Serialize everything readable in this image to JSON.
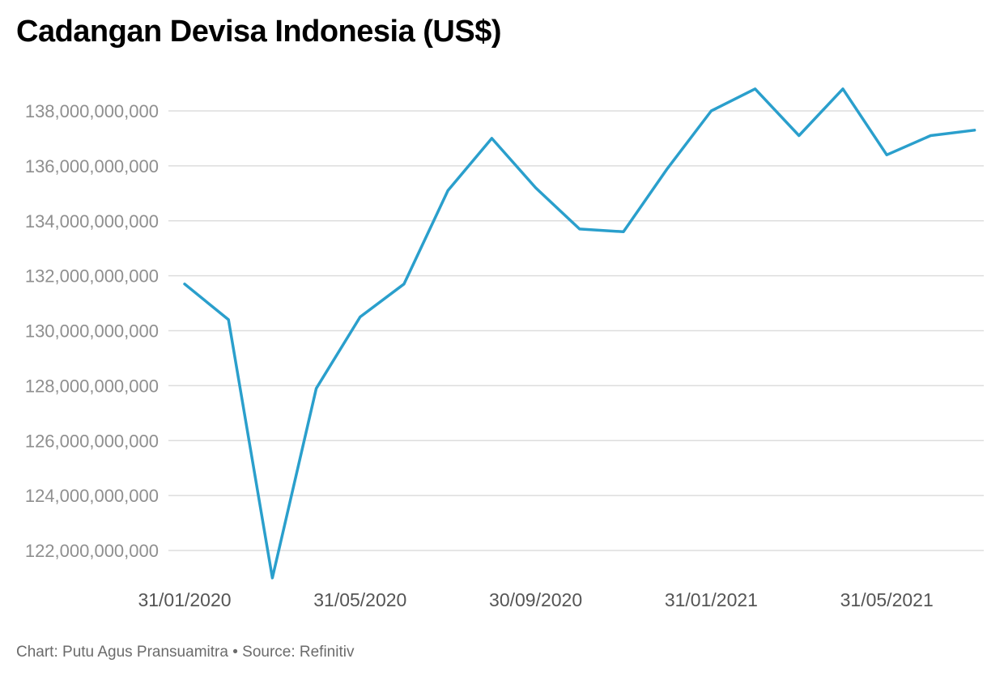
{
  "title": "Cadangan Devisa Indonesia (US$)",
  "footer": {
    "chart_by": "Chart: Putu Agus Pransuamitra",
    "separator": "•",
    "source": "Source: Refinitiv"
  },
  "colors": {
    "line": "#2a9fcc",
    "grid": "#dddddd",
    "ytick": "#8f8f8f",
    "xtick": "#555555"
  },
  "chart_data": {
    "type": "line",
    "title": "Cadangan Devisa Indonesia (US$)",
    "xlabel": "",
    "ylabel": "",
    "x": [
      "31/01/2020",
      "29/02/2020",
      "31/03/2020",
      "30/04/2020",
      "31/05/2020",
      "30/06/2020",
      "31/07/2020",
      "31/08/2020",
      "30/09/2020",
      "31/10/2020",
      "30/11/2020",
      "31/12/2020",
      "31/01/2021",
      "28/02/2021",
      "31/03/2021",
      "30/04/2021",
      "31/05/2021",
      "30/06/2021",
      "31/07/2021"
    ],
    "series": [
      {
        "values": [
          131700000000,
          130400000000,
          121000000000,
          127900000000,
          130500000000,
          131700000000,
          135100000000,
          137000000000,
          135200000000,
          133700000000,
          133600000000,
          135900000000,
          138000000000,
          138800000000,
          137100000000,
          138800000000,
          136400000000,
          137100000000,
          137300000000
        ]
      }
    ],
    "xtick_labels": [
      "31/01/2020",
      "31/05/2020",
      "30/09/2020",
      "31/01/2021",
      "31/05/2021"
    ],
    "yticks": [
      122000000000,
      124000000000,
      126000000000,
      128000000000,
      130000000000,
      132000000000,
      134000000000,
      136000000000,
      138000000000
    ],
    "ytick_labels": [
      "122,000,000,000",
      "124,000,000,000",
      "126,000,000,000",
      "128,000,000,000",
      "130,000,000,000",
      "132,000,000,000",
      "134,000,000,000",
      "136,000,000,000",
      "138,000,000,000"
    ],
    "ylim": [
      121000000000,
      139500000000
    ],
    "grid": true,
    "legend": "none"
  }
}
